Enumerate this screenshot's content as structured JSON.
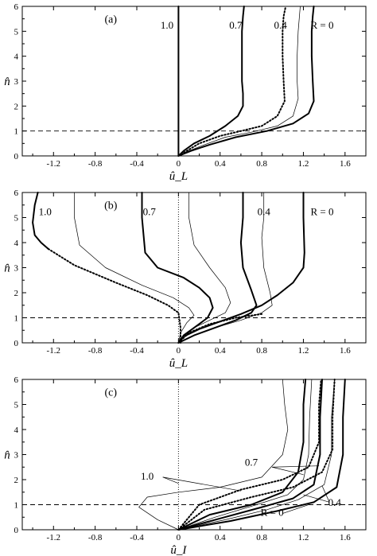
{
  "chart_data": [
    {
      "type": "line",
      "panel": "(a)",
      "xlabel": "û_L",
      "ylabel": "n̂",
      "xlim": [
        -1.5,
        1.8
      ],
      "ylim": [
        0,
        6
      ],
      "xticks": [
        "-1.2",
        "-0.8",
        "-0.4",
        "0",
        "0.4",
        "0.8",
        "1.2",
        "1.6"
      ],
      "yticks": [
        "0",
        "1",
        "2",
        "3",
        "4",
        "5",
        "6"
      ],
      "reference_lines": [
        {
          "orientation": "horizontal",
          "value": 1,
          "style": "dashed"
        }
      ],
      "labels": [
        {
          "text": "1.0",
          "x": -0.11,
          "y": 5.1
        },
        {
          "text": "0.7",
          "x": 0.55,
          "y": 5.1
        },
        {
          "text": "0.4",
          "x": 0.98,
          "y": 5.1
        },
        {
          "text": "R = 0",
          "x": 1.38,
          "y": 5.1
        }
      ],
      "series": [
        {
          "name": "1.0",
          "style": "solid-thick",
          "x": [
            0,
            0,
            0,
            0,
            0,
            0,
            0,
            0,
            0
          ],
          "y": [
            0,
            0.5,
            1,
            1.5,
            2,
            3,
            4,
            5,
            6
          ]
        },
        {
          "name": "0.7",
          "style": "solid-thick",
          "x": [
            0,
            0.05,
            0.15,
            0.3,
            0.45,
            0.57,
            0.62,
            0.62,
            0.61,
            0.61,
            0.61,
            0.62,
            0.63
          ],
          "y": [
            0,
            0.2,
            0.5,
            0.8,
            1.2,
            1.6,
            2,
            2.5,
            3,
            4,
            5,
            5.6,
            6
          ]
        },
        {
          "name": "0.4",
          "style": "dotted-thick",
          "x": [
            0,
            0.08,
            0.2,
            0.4,
            0.6,
            0.8,
            0.95,
            1.02,
            1.01,
            1.0,
            1.0,
            1.01,
            1.03
          ],
          "y": [
            0,
            0.2,
            0.5,
            0.8,
            1.0,
            1.2,
            1.6,
            2.2,
            3,
            4,
            5,
            5.6,
            6
          ]
        },
        {
          "name": "0.4-companion",
          "style": "solid-thin",
          "x": [
            0,
            0.1,
            0.25,
            0.45,
            0.7,
            0.95,
            1.1,
            1.15,
            1.14,
            1.14,
            1.15,
            1.17
          ],
          "y": [
            0,
            0.2,
            0.45,
            0.75,
            0.95,
            1.2,
            1.6,
            2.3,
            3,
            4,
            5,
            6
          ]
        },
        {
          "name": "R = 0",
          "style": "solid-thick",
          "x": [
            0,
            0.12,
            0.3,
            0.55,
            0.85,
            1.1,
            1.25,
            1.3,
            1.29,
            1.28,
            1.28,
            1.29,
            1.3
          ],
          "y": [
            0,
            0.2,
            0.45,
            0.75,
            1.0,
            1.3,
            1.7,
            2.2,
            3,
            4,
            5,
            5.6,
            6
          ]
        }
      ]
    },
    {
      "type": "line",
      "panel": "(b)",
      "xlabel": "û_L",
      "ylabel": "n̂",
      "xlim": [
        -1.5,
        1.8
      ],
      "ylim": [
        0,
        6
      ],
      "xticks": [
        "-1.2",
        "-0.8",
        "-0.4",
        "0",
        "0.4",
        "0.8",
        "1.2",
        "1.6"
      ],
      "yticks": [
        "0",
        "1",
        "2",
        "3",
        "4",
        "5",
        "6"
      ],
      "reference_lines": [
        {
          "orientation": "horizontal",
          "value": 1,
          "style": "dashed"
        },
        {
          "orientation": "vertical",
          "value": 0,
          "style": "dotted"
        }
      ],
      "labels": [
        {
          "text": "1.0",
          "x": -1.28,
          "y": 5.1
        },
        {
          "text": "0.7",
          "x": -0.28,
          "y": 5.1
        },
        {
          "text": "0.4",
          "x": 0.82,
          "y": 5.1
        },
        {
          "text": "R = 0",
          "x": 1.38,
          "y": 5.1
        }
      ],
      "series": [
        {
          "name": "1.0",
          "style": "solid-thick",
          "x": [
            -1.35,
            -1.38,
            -1.4,
            -1.38,
            -1.32,
            -1.25
          ],
          "y": [
            6,
            5.5,
            4.8,
            4.3,
            4.0,
            3.75
          ]
        },
        {
          "name": "1.0-lower",
          "style": "dotted-thick",
          "x": [
            -1.25,
            -1.0,
            -0.6,
            -0.3,
            -0.1,
            0,
            0.02,
            0.02
          ],
          "y": [
            3.75,
            3.1,
            2.4,
            1.9,
            1.5,
            1.2,
            0.6,
            0
          ]
        },
        {
          "name": "1.0-thin",
          "style": "solid-thin",
          "x": [
            -1.0,
            -1.0,
            -0.95,
            -0.7,
            -0.35,
            -0.05,
            0.1,
            0.15,
            0.08,
            0.02,
            0
          ],
          "y": [
            6,
            5,
            3.9,
            3.0,
            2.3,
            1.8,
            1.4,
            1.1,
            0.8,
            0.4,
            0
          ]
        },
        {
          "name": "0.7",
          "style": "solid-thick",
          "x": [
            -0.35,
            -0.35,
            -0.32,
            -0.2,
            0.05,
            0.2,
            0.3,
            0.33,
            0.28,
            0.15,
            0.05,
            0
          ],
          "y": [
            6,
            5,
            3.6,
            3.0,
            2.6,
            2.2,
            1.8,
            1.4,
            1.0,
            0.6,
            0.3,
            0
          ]
        },
        {
          "name": "0.7-thin",
          "style": "solid-thin",
          "x": [
            0.1,
            0.1,
            0.15,
            0.3,
            0.45,
            0.5,
            0.45,
            0.3,
            0.15,
            0.05,
            0
          ],
          "y": [
            6,
            5,
            3.9,
            3.0,
            2.2,
            1.6,
            1.2,
            0.9,
            0.6,
            0.3,
            0
          ]
        },
        {
          "name": "0.4",
          "style": "solid-thick",
          "x": [
            0.62,
            0.62,
            0.6,
            0.62,
            0.7,
            0.75,
            0.7,
            0.55,
            0.35,
            0.15,
            0
          ],
          "y": [
            6,
            5,
            4,
            3.0,
            2.1,
            1.5,
            1.2,
            0.9,
            0.6,
            0.3,
            0
          ]
        },
        {
          "name": "0.4-thin",
          "style": "solid-thin",
          "x": [
            0.82,
            0.82,
            0.8,
            0.82,
            0.88,
            0.9,
            0.8,
            0.6,
            0.35,
            0.15,
            0
          ],
          "y": [
            6,
            5,
            4.2,
            3.0,
            2.0,
            1.5,
            1.2,
            0.9,
            0.6,
            0.3,
            0
          ]
        },
        {
          "name": "R = 0",
          "style": "solid-thick",
          "x": [
            1.2,
            1.2,
            1.21,
            1.2,
            1.1,
            0.95,
            0.8,
            0.6,
            0.4,
            0.2,
            0.05,
            0
          ],
          "y": [
            6,
            5,
            3.6,
            3.0,
            2.4,
            1.9,
            1.5,
            1.15,
            0.85,
            0.55,
            0.25,
            0
          ]
        },
        {
          "name": "R = 0-dotted",
          "style": "dotted-thick",
          "x": [
            0,
            0.1,
            0.3,
            0.55,
            0.8
          ],
          "y": [
            0,
            0.4,
            0.75,
            1.0,
            1.15
          ]
        }
      ]
    },
    {
      "type": "line",
      "panel": "(c)",
      "xlabel": "û_I",
      "ylabel": "n̂",
      "xlim": [
        -1.5,
        1.8
      ],
      "ylim": [
        0,
        6
      ],
      "xticks": [
        "-1.2",
        "-0.8",
        "-0.4",
        "0",
        "0.4",
        "0.8",
        "1.2",
        "1.6"
      ],
      "yticks": [
        "0",
        "1",
        "2",
        "3",
        "4",
        "5",
        "6"
      ],
      "reference_lines": [
        {
          "orientation": "horizontal",
          "value": 1,
          "style": "dashed"
        },
        {
          "orientation": "vertical",
          "value": 0,
          "style": "dotted"
        }
      ],
      "labels": [
        {
          "text": "1.0",
          "x": -0.3,
          "y": 2.0
        },
        {
          "text": "0.7",
          "x": 0.7,
          "y": 2.55
        },
        {
          "text": "0.4",
          "x": 1.5,
          "y": 0.95
        },
        {
          "text": "R = 0",
          "x": 0.9,
          "y": 0.55
        }
      ],
      "series": [
        {
          "name": "1.0-thin",
          "style": "solid-thin",
          "x": [
            0,
            -0.2,
            -0.38,
            -0.3,
            0.0,
            0.4,
            0.8,
            1.0,
            1.05,
            1.02,
            1.0
          ],
          "y": [
            0,
            0.4,
            0.9,
            1.3,
            1.5,
            1.7,
            2.1,
            3.0,
            4.0,
            5.0,
            6.0
          ]
        },
        {
          "name": "1.0-thick",
          "style": "solid-thick",
          "x": [
            0,
            0.3,
            0.7,
            1.0,
            1.15,
            1.2,
            1.2,
            1.22
          ],
          "y": [
            0,
            0.6,
            1.0,
            1.5,
            2.3,
            3.5,
            5.0,
            6.0
          ]
        },
        {
          "name": "0.7-thin",
          "style": "solid-thin",
          "x": [
            0,
            0.35,
            0.75,
            1.05,
            1.2,
            1.25,
            1.26,
            1.28
          ],
          "y": [
            0,
            0.5,
            1.0,
            1.4,
            2.0,
            3.0,
            4.5,
            6.0
          ]
        },
        {
          "name": "0.7-dotted",
          "style": "dotted-thick",
          "x": [
            0,
            0.2,
            0.6,
            1.0,
            1.25,
            1.35,
            1.35,
            1.37
          ],
          "y": [
            0,
            1.0,
            1.6,
            2.0,
            2.5,
            3.5,
            5.0,
            6.0
          ]
        },
        {
          "name": "0.4-thick",
          "style": "solid-thick",
          "x": [
            0,
            0.4,
            0.8,
            1.1,
            1.3,
            1.36,
            1.36,
            1.38
          ],
          "y": [
            0,
            0.45,
            0.9,
            1.25,
            1.8,
            3.0,
            4.5,
            6.0
          ]
        },
        {
          "name": "0.4-thin",
          "style": "solid-thin",
          "x": [
            0,
            0.45,
            0.85,
            1.15,
            1.4,
            1.47,
            1.47,
            1.5
          ],
          "y": [
            0,
            0.4,
            0.8,
            1.2,
            1.8,
            3.0,
            4.5,
            6.0
          ]
        },
        {
          "name": "R = 0-thick",
          "style": "solid-thick",
          "x": [
            0,
            0.5,
            0.95,
            1.3,
            1.52,
            1.58,
            1.58,
            1.6
          ],
          "y": [
            0,
            0.35,
            0.75,
            1.1,
            1.7,
            3.0,
            4.5,
            6.0
          ]
        },
        {
          "name": "R = 0-dotted",
          "style": "dotted-thick",
          "x": [
            0,
            0.25,
            0.7,
            1.1,
            1.38,
            1.48,
            1.48,
            1.5
          ],
          "y": [
            0,
            0.8,
            1.3,
            1.7,
            2.3,
            3.2,
            4.5,
            6.0
          ]
        }
      ],
      "leaders": [
        {
          "from": [
            -0.15,
            2.1
          ],
          "to": [
            0.0,
            1.85
          ]
        },
        {
          "from": [
            -0.15,
            2.1
          ],
          "to": [
            0.6,
            1.55
          ]
        },
        {
          "from": [
            0.9,
            2.5
          ],
          "to": [
            1.2,
            2.2
          ]
        },
        {
          "from": [
            0.9,
            2.5
          ],
          "to": [
            1.35,
            2.55
          ]
        },
        {
          "from": [
            1.45,
            1.1
          ],
          "to": [
            1.2,
            1.4
          ]
        },
        {
          "from": [
            1.45,
            1.1
          ],
          "to": [
            1.38,
            1.75
          ]
        },
        {
          "from": [
            1.0,
            0.65
          ],
          "to": [
            1.25,
            1.0
          ]
        }
      ]
    }
  ]
}
